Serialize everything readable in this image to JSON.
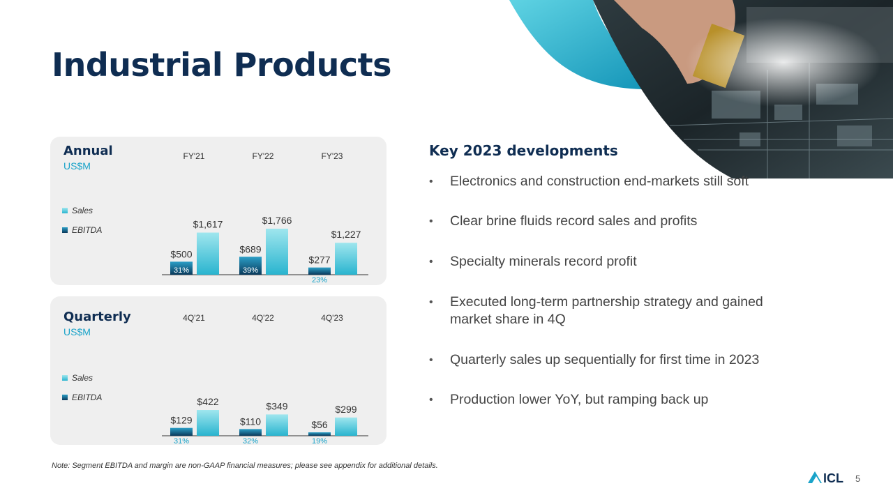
{
  "title": "Industrial Products",
  "colors": {
    "navy": "#0f2d52",
    "teal": "#1aa3c9",
    "sales_light": "#9fe6ee",
    "ebitda_dark": "#0a3a5c",
    "panel_bg": "#efefef"
  },
  "hero_image": "circuit-board-hand-chip-photo",
  "annual": {
    "title": "Annual",
    "unit": "US$M",
    "legend_sales": "Sales",
    "legend_ebitda": "EBITDA"
  },
  "quarterly": {
    "title": "Quarterly",
    "unit": "US$M",
    "legend_sales": "Sales",
    "legend_ebitda": "EBITDA"
  },
  "chart_data": [
    {
      "type": "bar",
      "title": "Annual",
      "categories": [
        "FY'21",
        "FY'22",
        "FY'23"
      ],
      "series": [
        {
          "name": "EBITDA",
          "values": [
            500,
            689,
            277
          ],
          "labels": [
            "$500",
            "$689",
            "$277"
          ]
        },
        {
          "name": "Sales",
          "values": [
            1617,
            1766,
            1227
          ],
          "labels": [
            "$1,617",
            "$1,766",
            "$1,227"
          ]
        }
      ],
      "margins": [
        "31%",
        "39%",
        "23%"
      ],
      "ylim": [
        0,
        1766
      ]
    },
    {
      "type": "bar",
      "title": "Quarterly",
      "categories": [
        "4Q'21",
        "4Q'22",
        "4Q'23"
      ],
      "series": [
        {
          "name": "EBITDA",
          "values": [
            129,
            110,
            56
          ],
          "labels": [
            "$129",
            "$110",
            "$56"
          ]
        },
        {
          "name": "Sales",
          "values": [
            422,
            349,
            299
          ],
          "labels": [
            "$422",
            "$349",
            "$299"
          ]
        }
      ],
      "margins": [
        "31%",
        "32%",
        "19%"
      ],
      "ylim": [
        0,
        422
      ]
    }
  ],
  "developments": {
    "title": "Key 2023 developments",
    "items": [
      "Electronics and construction end-markets still soft",
      "Clear brine fluids record sales and profits",
      "Specialty minerals record profit",
      "Executed long-term partnership strategy and gained market share in 4Q",
      "Quarterly sales up sequentially for first time in 2023",
      "Production lower YoY, but ramping back up"
    ]
  },
  "note": "Note: Segment EBITDA and margin are non-GAAP financial measures; please see appendix for additional details.",
  "logo_text": "ICL",
  "page_number": "5"
}
